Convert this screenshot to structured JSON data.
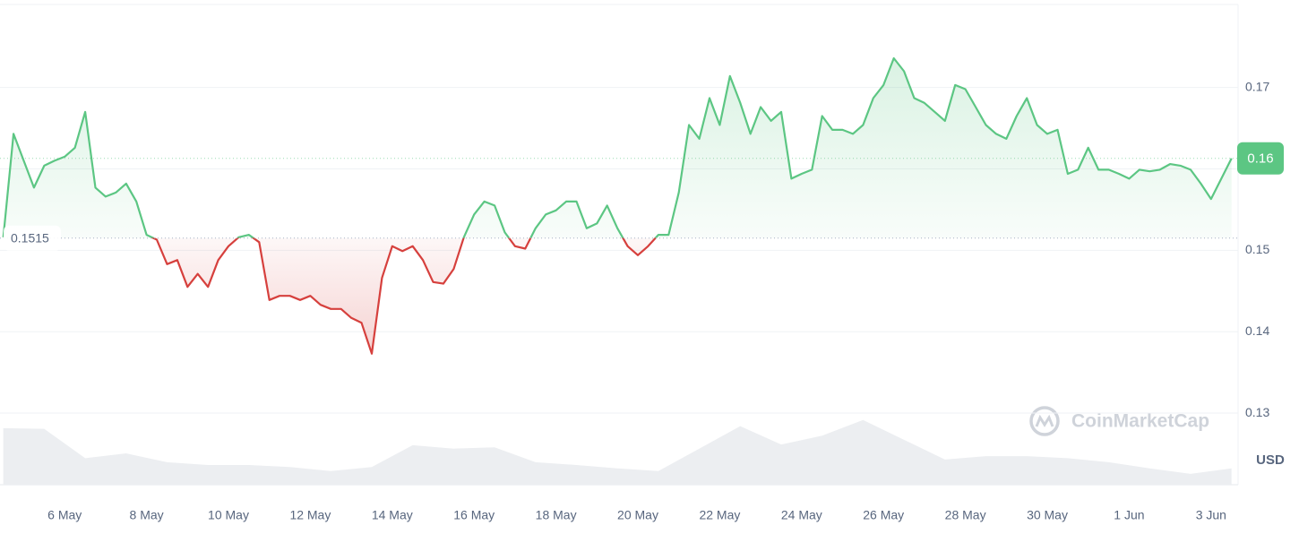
{
  "chart_data": {
    "type": "line",
    "x": [
      4.5,
      4.75,
      5,
      5.25,
      5.5,
      5.75,
      6,
      6.25,
      6.5,
      6.75,
      7,
      7.25,
      7.5,
      7.75,
      8,
      8.25,
      8.5,
      8.75,
      9,
      9.25,
      9.5,
      9.75,
      10,
      10.25,
      10.5,
      10.75,
      11,
      11.25,
      11.5,
      11.75,
      12,
      12.25,
      12.5,
      12.75,
      13,
      13.25,
      13.5,
      13.75,
      14,
      14.25,
      14.5,
      14.75,
      15,
      15.25,
      15.5,
      15.75,
      16,
      16.25,
      16.5,
      16.75,
      17,
      17.25,
      17.5,
      17.75,
      18,
      18.25,
      18.5,
      18.75,
      19,
      19.25,
      19.5,
      19.75,
      20,
      20.25,
      20.5,
      20.75,
      21,
      21.25,
      21.5,
      21.75,
      22,
      22.25,
      22.5,
      22.75,
      23,
      23.25,
      23.5,
      23.75,
      24,
      24.25,
      24.5,
      24.75,
      25,
      25.25,
      25.5,
      25.75,
      26,
      26.25,
      26.5,
      26.75,
      27,
      27.25,
      27.5,
      27.75,
      28,
      28.25,
      28.5,
      28.75,
      29,
      29.25,
      29.5,
      29.75,
      30,
      30.25,
      30.5,
      30.75,
      31,
      31.25,
      31.5,
      31.75,
      32,
      32.25,
      32.5,
      32.75,
      33,
      33.25,
      33.5,
      33.75,
      34,
      34.25,
      34.5
    ],
    "series": [
      {
        "name": "Price",
        "color": "#5cc683",
        "below_color": "#d6403d",
        "values": [
          0.1516,
          0.1643,
          0.161,
          0.1577,
          0.1604,
          0.161,
          0.1615,
          0.1626,
          0.167,
          0.1577,
          0.1566,
          0.1571,
          0.1582,
          0.156,
          0.1519,
          0.1513,
          0.1483,
          0.1488,
          0.1455,
          0.1471,
          0.1455,
          0.1488,
          0.1505,
          0.1516,
          0.1519,
          0.151,
          0.1439,
          0.1444,
          0.1444,
          0.1439,
          0.1444,
          0.1433,
          0.1428,
          0.1428,
          0.1417,
          0.1411,
          0.1373,
          0.1466,
          0.1505,
          0.1499,
          0.1505,
          0.1488,
          0.1461,
          0.1459,
          0.1477,
          0.1516,
          0.1544,
          0.156,
          0.1555,
          0.1522,
          0.1505,
          0.1502,
          0.1527,
          0.1544,
          0.1549,
          0.156,
          0.156,
          0.1527,
          0.1533,
          0.1555,
          0.1527,
          0.1505,
          0.1494,
          0.1505,
          0.1519,
          0.1519,
          0.1571,
          0.1654,
          0.1637,
          0.1687,
          0.1654,
          0.1714,
          0.1681,
          0.1643,
          0.1676,
          0.1659,
          0.167,
          0.1588,
          0.1594,
          0.1599,
          0.1665,
          0.1648,
          0.1648,
          0.1643,
          0.1654,
          0.1687,
          0.1703,
          0.1736,
          0.172,
          0.1687,
          0.1681,
          0.167,
          0.1659,
          0.1703,
          0.1698,
          0.1676,
          0.1654,
          0.1643,
          0.1637,
          0.1665,
          0.1687,
          0.1654,
          0.1643,
          0.1648,
          0.1594,
          0.1599,
          0.1626,
          0.1599,
          0.1599,
          0.1594,
          0.1588,
          0.1599,
          0.1597,
          0.1599,
          0.1606,
          0.1604,
          0.1599,
          0.1582,
          0.1563,
          0.1588,
          0.1613
        ]
      }
    ],
    "baseline": 0.1515,
    "price_label": {
      "value": 0.1613,
      "label": "0.16"
    },
    "volume": {
      "color": "#eceef1",
      "x": [
        4.5,
        5.5,
        6.5,
        7.5,
        8.5,
        9.5,
        10.5,
        11.5,
        12.5,
        13.5,
        14.5,
        15.5,
        16.5,
        17.5,
        18.5,
        19.5,
        20.5,
        21.5,
        22.5,
        23.5,
        24.5,
        25.5,
        26.5,
        27.5,
        28.5,
        29.5,
        30.5,
        31.5,
        32.5,
        33.5,
        34.5
      ],
      "values": [
        83,
        82,
        39,
        46,
        33,
        29,
        29,
        26,
        20,
        26,
        58,
        53,
        55,
        33,
        29,
        24,
        20,
        53,
        86,
        59,
        72,
        95,
        66,
        37,
        42,
        42,
        39,
        33,
        24,
        16,
        24
      ],
      "ylim": [
        0,
        100
      ]
    },
    "xlim": [
      4.42,
      34.66
    ],
    "xticks": [
      {
        "value": 6,
        "label": "6 May"
      },
      {
        "value": 8,
        "label": "8 May"
      },
      {
        "value": 10,
        "label": "10 May"
      },
      {
        "value": 12,
        "label": "12 May"
      },
      {
        "value": 14,
        "label": "14 May"
      },
      {
        "value": 16,
        "label": "16 May"
      },
      {
        "value": 18,
        "label": "18 May"
      },
      {
        "value": 20,
        "label": "20 May"
      },
      {
        "value": 22,
        "label": "22 May"
      },
      {
        "value": 24,
        "label": "24 May"
      },
      {
        "value": 26,
        "label": "26 May"
      },
      {
        "value": 28,
        "label": "28 May"
      },
      {
        "value": 30,
        "label": "30 May"
      },
      {
        "value": 32,
        "label": "1 Jun"
      },
      {
        "value": 34,
        "label": "3 Jun"
      }
    ],
    "ylim": [
      0.1212,
      0.1802
    ],
    "yticks": [
      0.13,
      0.14,
      0.15,
      0.16,
      0.17
    ],
    "grid": true,
    "currency": "USD",
    "watermark": "CoinMarketCap"
  }
}
